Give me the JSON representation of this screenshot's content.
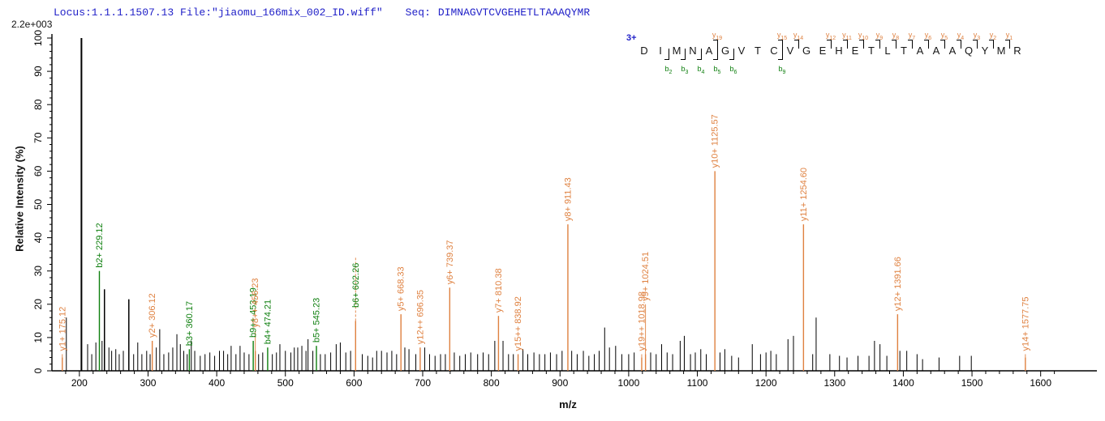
{
  "header": {
    "locus_file": "Locus:1.1.1.1507.13 File:\"jiaomu_166mix_002_ID.wiff\"",
    "seq_label": "Seq:",
    "sequence": "DIMNAGVTCVGEHETLTAAAQYMR",
    "max_intensity": "2.2e+003"
  },
  "sequence_panel": {
    "charge": "3+",
    "residues": "DIMNAGVTCVGEHETLTAAAQYMR",
    "y_ions": [
      {
        "before_pos": 6,
        "label": "y19"
      },
      {
        "before_pos": 10,
        "label": "y15"
      },
      {
        "before_pos": 11,
        "label": "y14"
      },
      {
        "before_pos": 13,
        "label": "y12"
      },
      {
        "before_pos": 14,
        "label": "y11"
      },
      {
        "before_pos": 15,
        "label": "y10"
      },
      {
        "before_pos": 16,
        "label": "y9"
      },
      {
        "before_pos": 17,
        "label": "y8"
      },
      {
        "before_pos": 18,
        "label": "y7"
      },
      {
        "before_pos": 19,
        "label": "y6"
      },
      {
        "before_pos": 20,
        "label": "y5"
      },
      {
        "before_pos": 21,
        "label": "y4"
      },
      {
        "before_pos": 22,
        "label": "y3"
      },
      {
        "before_pos": 23,
        "label": "y2"
      },
      {
        "before_pos": 24,
        "label": "y1"
      }
    ],
    "b_ions": [
      {
        "before_pos": 3,
        "label": "b2"
      },
      {
        "before_pos": 4,
        "label": "b3"
      },
      {
        "before_pos": 5,
        "label": "b4"
      },
      {
        "before_pos": 6,
        "label": "b5"
      },
      {
        "before_pos": 7,
        "label": "b6"
      },
      {
        "before_pos": 10,
        "label": "b9"
      }
    ]
  },
  "chart_data": {
    "type": "bar",
    "subtype": "ms2-fragmentation-spectrum",
    "title": "",
    "xlabel": "m/z",
    "ylabel": "Relative  Intensity (%)",
    "xlim": [
      160,
      1650
    ],
    "ylim": [
      0,
      100
    ],
    "x_major_ticks": [
      200,
      300,
      400,
      500,
      600,
      700,
      800,
      900,
      1000,
      1100,
      1200,
      1300,
      1400,
      1500,
      1600
    ],
    "x_minor_step": 20,
    "y_major_ticks": [
      0,
      10,
      20,
      30,
      40,
      50,
      60,
      70,
      80,
      90,
      100
    ],
    "y_minor_step": 2,
    "colors": {
      "y_series": "#df8140",
      "b_series": "#0e7f0e",
      "unmatched": "#000000",
      "header_blue": "#2121c8"
    },
    "annotated_peaks": [
      {
        "mz": 175.12,
        "pct": 4,
        "label": "y1+ 175.12",
        "series": "y",
        "label_base": 5
      },
      {
        "mz": 229.12,
        "pct": 30,
        "label": "b2+ 229.12",
        "series": "b"
      },
      {
        "mz": 306.12,
        "pct": 9,
        "label": "y2+ 306.12",
        "series": "y"
      },
      {
        "mz": 360.17,
        "pct": 6.5,
        "label": "b3+ 360.17",
        "series": "b"
      },
      {
        "mz": 453.19,
        "pct": 9,
        "label": "b9++ 453.19",
        "series": "b"
      },
      {
        "mz": 456.23,
        "pct": 6,
        "label": "y8++ 456.23",
        "series": "y",
        "label_base": 12
      },
      {
        "mz": 474.21,
        "pct": 7,
        "label": "b4+ 474.21",
        "series": "b"
      },
      {
        "mz": 545.23,
        "pct": 7.5,
        "label": "b5+ 545.23",
        "series": "b"
      },
      {
        "mz": 602.26,
        "pct": 15,
        "label": "b6+ 602.26",
        "series": "b",
        "peak_series": "y",
        "leader_dash": true,
        "leader_to": 34,
        "label_base": 18
      },
      {
        "mz": 668.33,
        "pct": 17,
        "label": "y5+ 668.33",
        "series": "y"
      },
      {
        "mz": 696.35,
        "pct": 7,
        "label": "y12++ 696.35",
        "series": "y"
      },
      {
        "mz": 739.37,
        "pct": 25,
        "label": "y6+ 739.37",
        "series": "y"
      },
      {
        "mz": 810.38,
        "pct": 16.5,
        "label": "y7+ 810.38",
        "series": "y"
      },
      {
        "mz": 838.92,
        "pct": 5,
        "label": "y15++ 838.92",
        "series": "y"
      },
      {
        "mz": 911.43,
        "pct": 44,
        "label": "y8+ 911.43",
        "series": "y"
      },
      {
        "mz": 1018.98,
        "pct": 4,
        "label": "y19++ 1018.98",
        "series": "y",
        "label_base": 5
      },
      {
        "mz": 1024.51,
        "pct": 5,
        "label": "y9+ 1024.51",
        "series": "y",
        "label_base": 20
      },
      {
        "mz": 1125.57,
        "pct": 60,
        "label": "y10+ 1125.57",
        "series": "y"
      },
      {
        "mz": 1254.6,
        "pct": 44,
        "label": "y11+ 1254.60",
        "series": "y"
      },
      {
        "mz": 1391.66,
        "pct": 17,
        "label": "y12+ 1391.66",
        "series": "y"
      },
      {
        "mz": 1577.75,
        "pct": 4,
        "label": "y14+ 1577.75",
        "series": "y",
        "label_base": 5
      }
    ],
    "noise_peaks": [
      [
        181,
        16
      ],
      [
        203,
        100
      ],
      [
        212,
        8
      ],
      [
        218,
        5
      ],
      [
        224,
        8.5
      ],
      [
        233,
        9
      ],
      [
        236.5,
        24.5
      ],
      [
        243,
        7
      ],
      [
        247,
        6
      ],
      [
        253,
        6.5
      ],
      [
        258,
        5
      ],
      [
        264,
        6
      ],
      [
        272,
        21.5
      ],
      [
        279,
        5
      ],
      [
        285,
        8.5
      ],
      [
        291,
        5
      ],
      [
        298,
        6
      ],
      [
        303,
        5
      ],
      [
        312,
        7
      ],
      [
        317,
        12.5
      ],
      [
        323,
        5
      ],
      [
        330,
        5.5
      ],
      [
        336,
        7
      ],
      [
        342,
        11
      ],
      [
        347,
        8
      ],
      [
        352,
        6
      ],
      [
        357,
        5
      ],
      [
        363,
        9
      ],
      [
        368,
        6
      ],
      [
        376,
        4.5
      ],
      [
        383,
        5
      ],
      [
        390,
        5.5
      ],
      [
        397,
        4.5
      ],
      [
        404,
        6
      ],
      [
        410,
        6
      ],
      [
        416,
        5
      ],
      [
        421,
        7.5
      ],
      [
        428,
        5
      ],
      [
        434,
        7.5
      ],
      [
        440,
        5.5
      ],
      [
        447,
        5
      ],
      [
        461,
        5
      ],
      [
        467,
        5.5
      ],
      [
        481,
        5
      ],
      [
        487,
        5.5
      ],
      [
        492,
        8
      ],
      [
        500,
        6
      ],
      [
        508,
        5.5
      ],
      [
        513,
        7
      ],
      [
        518,
        7
      ],
      [
        524,
        7.5
      ],
      [
        530,
        6
      ],
      [
        533,
        9.5
      ],
      [
        540,
        6
      ],
      [
        551,
        5
      ],
      [
        558,
        5
      ],
      [
        566,
        5.5
      ],
      [
        574,
        8
      ],
      [
        580,
        8.5
      ],
      [
        588,
        5.5
      ],
      [
        595,
        6
      ],
      [
        612,
        5
      ],
      [
        620,
        4.5
      ],
      [
        627,
        4
      ],
      [
        633,
        6
      ],
      [
        640,
        6
      ],
      [
        648,
        5.5
      ],
      [
        655,
        6
      ],
      [
        662,
        5
      ],
      [
        674,
        7
      ],
      [
        680,
        6.5
      ],
      [
        690,
        5
      ],
      [
        703,
        7
      ],
      [
        710,
        5
      ],
      [
        718,
        4.5
      ],
      [
        726,
        5
      ],
      [
        733,
        5
      ],
      [
        746,
        5.5
      ],
      [
        754,
        4.5
      ],
      [
        762,
        5
      ],
      [
        770,
        5.5
      ],
      [
        780,
        5
      ],
      [
        788,
        5.5
      ],
      [
        796,
        5
      ],
      [
        805,
        9
      ],
      [
        817,
        9
      ],
      [
        825,
        5
      ],
      [
        832,
        5
      ],
      [
        846,
        6.5
      ],
      [
        853,
        5
      ],
      [
        862,
        5.5
      ],
      [
        870,
        5
      ],
      [
        878,
        5
      ],
      [
        886,
        5.5
      ],
      [
        895,
        5
      ],
      [
        903,
        6
      ],
      [
        917,
        6
      ],
      [
        925,
        5
      ],
      [
        934,
        6
      ],
      [
        942,
        4.5
      ],
      [
        950,
        5
      ],
      [
        957,
        6
      ],
      [
        965,
        13
      ],
      [
        972,
        7
      ],
      [
        981,
        7.5
      ],
      [
        990,
        5
      ],
      [
        1000,
        5
      ],
      [
        1008,
        5.5
      ],
      [
        1032,
        5.5
      ],
      [
        1040,
        5
      ],
      [
        1048,
        8
      ],
      [
        1056,
        5.5
      ],
      [
        1064,
        5
      ],
      [
        1075,
        9
      ],
      [
        1081,
        10.5
      ],
      [
        1090,
        5
      ],
      [
        1097,
        5.5
      ],
      [
        1105,
        6.5
      ],
      [
        1113,
        5
      ],
      [
        1133,
        5.5
      ],
      [
        1140,
        6.5
      ],
      [
        1150,
        4.5
      ],
      [
        1160,
        4
      ],
      [
        1180,
        8
      ],
      [
        1192,
        5
      ],
      [
        1200,
        5.5
      ],
      [
        1207,
        6
      ],
      [
        1215,
        5
      ],
      [
        1232,
        9.5
      ],
      [
        1240,
        10.5
      ],
      [
        1268,
        5
      ],
      [
        1273,
        16
      ],
      [
        1293,
        5
      ],
      [
        1307,
        4.5
      ],
      [
        1318,
        4
      ],
      [
        1334,
        4.5
      ],
      [
        1350,
        4.5
      ],
      [
        1358,
        9
      ],
      [
        1366,
        8
      ],
      [
        1376,
        4.5
      ],
      [
        1395,
        6
      ],
      [
        1405,
        6
      ],
      [
        1420,
        5
      ],
      [
        1428,
        3.5
      ],
      [
        1452,
        4
      ],
      [
        1482,
        4.5
      ],
      [
        1499,
        4.5
      ]
    ]
  }
}
